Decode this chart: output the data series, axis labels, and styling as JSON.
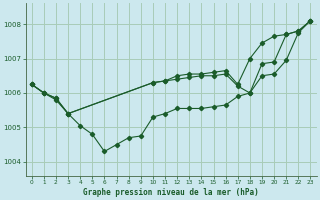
{
  "title": "Graphe pression niveau de la mer (hPa)",
  "bg_color": "#cce8ee",
  "grid_color": "#a8ccb8",
  "line_color": "#1a5c2a",
  "marker_color": "#1a5c2a",
  "xlim": [
    -0.5,
    23.5
  ],
  "ylim": [
    1003.6,
    1008.6
  ],
  "yticks": [
    1004,
    1005,
    1006,
    1007,
    1008
  ],
  "xticks": [
    0,
    1,
    2,
    3,
    4,
    5,
    6,
    7,
    8,
    9,
    10,
    11,
    12,
    13,
    14,
    15,
    16,
    17,
    18,
    19,
    20,
    21,
    22,
    23
  ],
  "series1_x": [
    0,
    1,
    2,
    3,
    4,
    5,
    6,
    7,
    8,
    9,
    10,
    11,
    12,
    13,
    14,
    15,
    16,
    17,
    18,
    19,
    20,
    21,
    22,
    23
  ],
  "series1_y": [
    1006.25,
    1006.0,
    1005.8,
    1005.4,
    1005.05,
    1004.8,
    1004.3,
    1004.5,
    1004.7,
    1004.75,
    1005.3,
    1005.4,
    1005.55,
    1005.55,
    1005.55,
    1005.6,
    1005.65,
    1005.9,
    1006.0,
    1006.85,
    1006.9,
    1007.7,
    1007.8,
    1008.1
  ],
  "series2_x": [
    0,
    1,
    2,
    3,
    10,
    11,
    12,
    13,
    14,
    15,
    16,
    17,
    18,
    19,
    20,
    21,
    22,
    23
  ],
  "series2_y": [
    1006.25,
    1006.0,
    1005.85,
    1005.4,
    1006.3,
    1006.35,
    1006.4,
    1006.45,
    1006.5,
    1006.5,
    1006.55,
    1006.2,
    1006.0,
    1006.5,
    1006.55,
    1006.95,
    1007.75,
    1008.1
  ],
  "series3_x": [
    0,
    1,
    2,
    3,
    10,
    11,
    12,
    13,
    14,
    15,
    16,
    17,
    18,
    19,
    20,
    21,
    22,
    23
  ],
  "series3_y": [
    1006.25,
    1006.0,
    1005.85,
    1005.4,
    1006.3,
    1006.35,
    1006.5,
    1006.55,
    1006.55,
    1006.6,
    1006.65,
    1006.25,
    1007.0,
    1007.45,
    1007.65,
    1007.7,
    1007.8,
    1008.1
  ]
}
